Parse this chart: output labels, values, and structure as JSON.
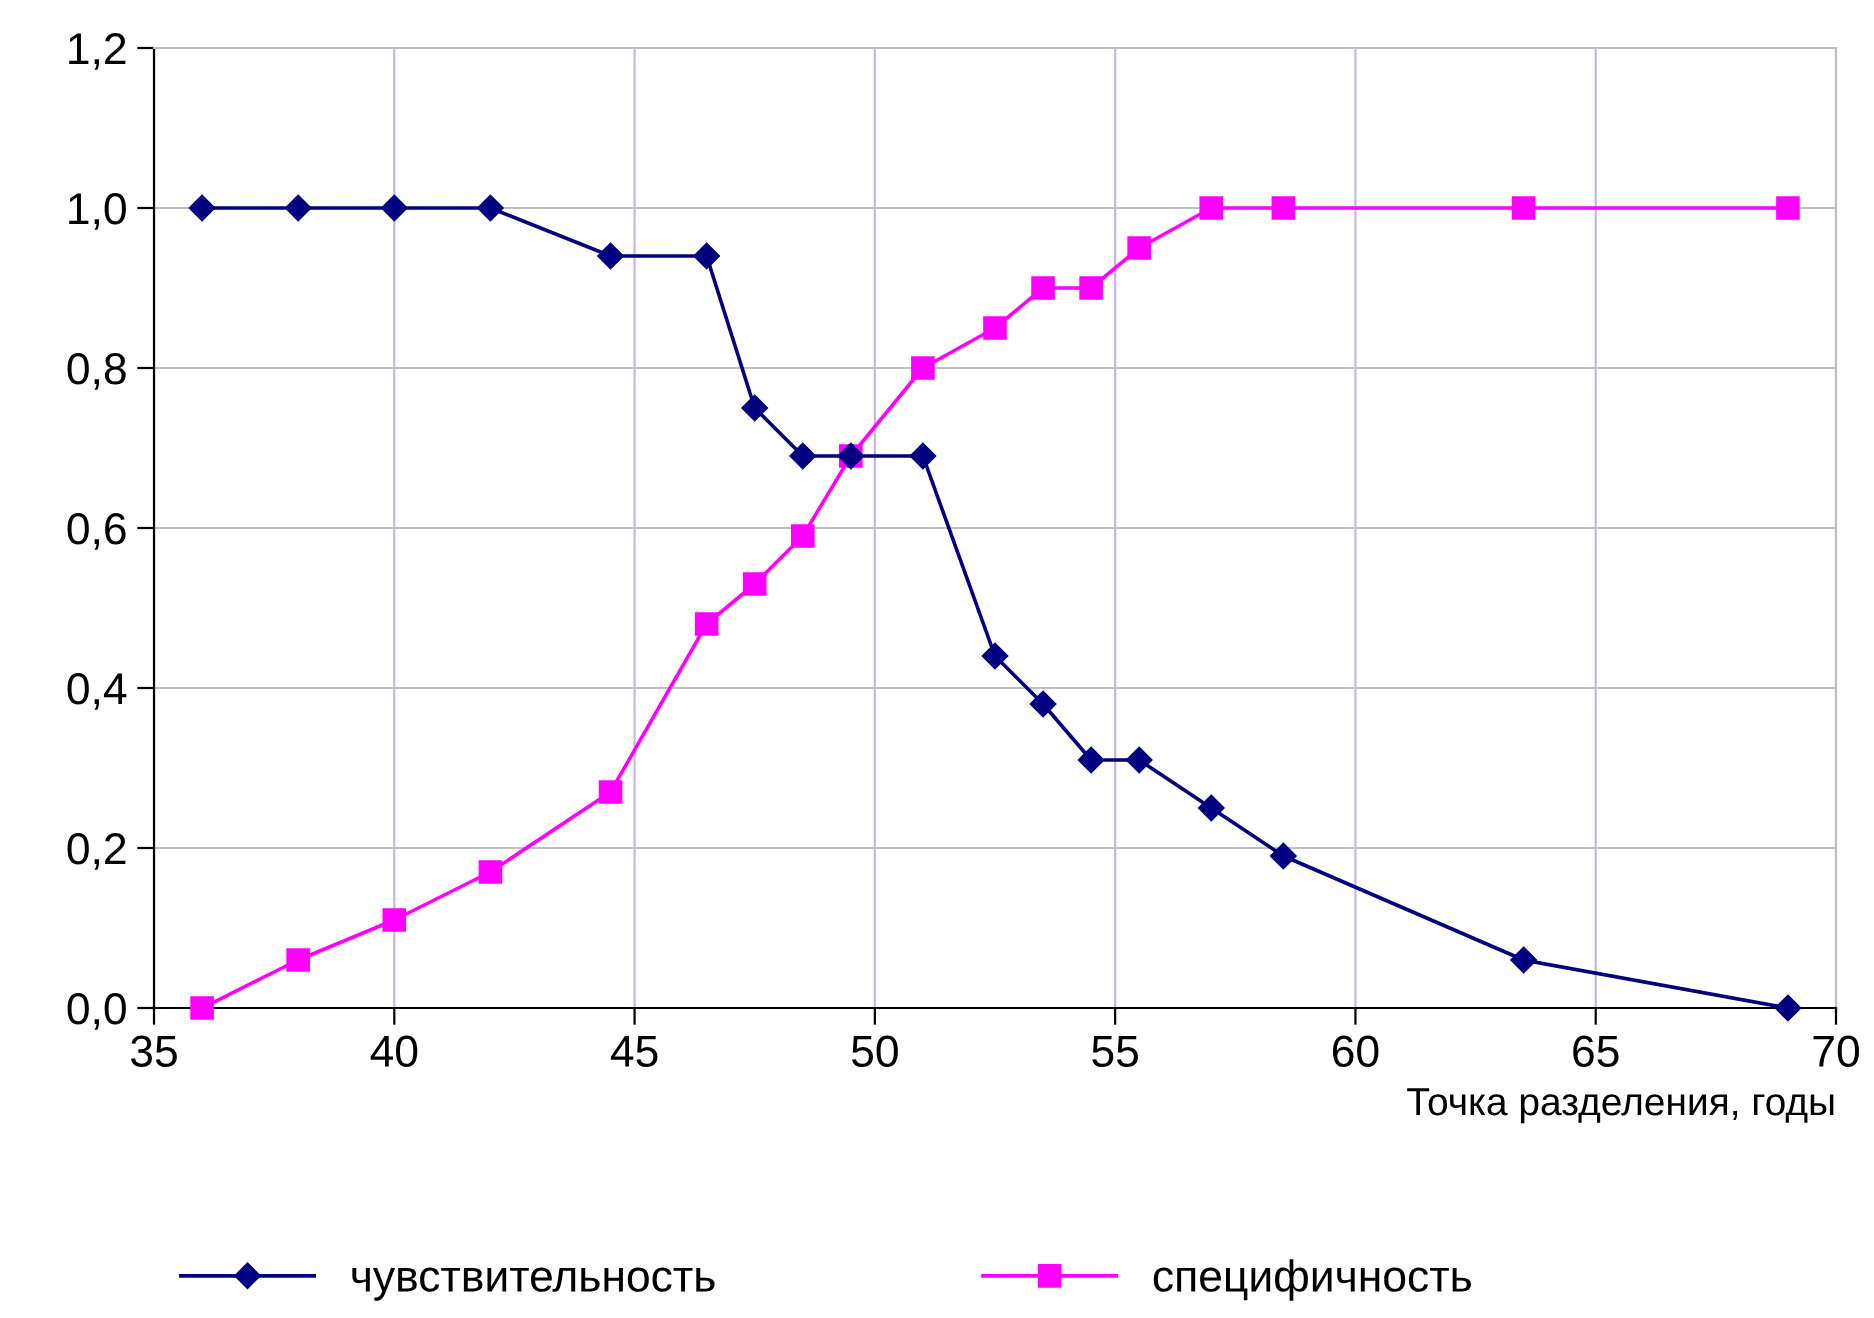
{
  "chart_data": {
    "type": "line",
    "xlabel": "Точка разделения, годы",
    "xlim": [
      35,
      70
    ],
    "xticks": [
      35,
      40,
      45,
      50,
      55,
      60,
      65,
      70
    ],
    "ylim": [
      0,
      1.2
    ],
    "yticks": [
      {
        "value": 0,
        "label": "0,0"
      },
      {
        "value": 0.2,
        "label": "0,2"
      },
      {
        "value": 0.4,
        "label": "0,4"
      },
      {
        "value": 0.6,
        "label": "0,6"
      },
      {
        "value": 0.8,
        "label": "0,8"
      },
      {
        "value": 1.0,
        "label": "1,0"
      },
      {
        "value": 1.2,
        "label": "1,2"
      }
    ],
    "grid": true,
    "legend": "bottom",
    "series": [
      {
        "name": "чувствительность",
        "color": "#000080",
        "marker": "diamond",
        "x": [
          36,
          38,
          40,
          42,
          44.5,
          46.5,
          47.5,
          48.5,
          49.5,
          51,
          52.5,
          53.5,
          54.5,
          55.5,
          57,
          58.5,
          63.5,
          69
        ],
        "values": [
          1.0,
          1.0,
          1.0,
          1.0,
          0.94,
          0.94,
          0.75,
          0.69,
          0.69,
          0.69,
          0.44,
          0.38,
          0.31,
          0.31,
          0.25,
          0.19,
          0.06,
          0.0
        ]
      },
      {
        "name": "специфичность",
        "color": "#ff00ff",
        "marker": "square",
        "x": [
          36,
          38,
          40,
          42,
          44.5,
          46.5,
          47.5,
          48.5,
          49.5,
          51,
          52.5,
          53.5,
          54.5,
          55.5,
          57,
          58.5,
          63.5,
          69
        ],
        "values": [
          0.0,
          0.06,
          0.11,
          0.17,
          0.27,
          0.48,
          0.53,
          0.59,
          0.69,
          0.8,
          0.85,
          0.9,
          0.9,
          0.95,
          1.0,
          1.0,
          1.0,
          1.0
        ]
      }
    ]
  }
}
